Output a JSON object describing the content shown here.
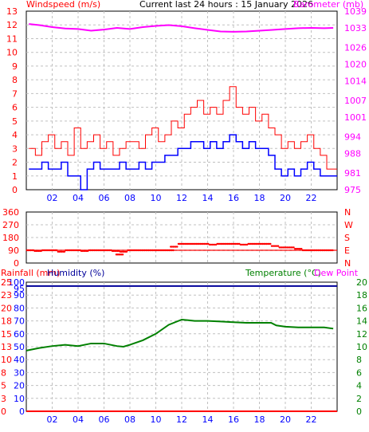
{
  "header": {
    "left_title": "Windspeed (m/s)",
    "center_title": "Current last 24 hours : 15 January 2026",
    "right_title": "Barometer (mb)"
  },
  "colors": {
    "gust": "#ff0000",
    "avg_wind": "#0000ff",
    "barometer": "#ff00ff",
    "direction": "#ff0000",
    "temperature": "#008000",
    "humidity": "#000099",
    "rainfall": "#ff0000",
    "grid": "#c0c0c0",
    "frame": "#000000"
  },
  "chart_data": [
    {
      "type": "line",
      "title": "Current last 24 hours : 15 January 2026",
      "x_ticks": [
        "02",
        "04",
        "06",
        "08",
        "10",
        "12",
        "14",
        "16",
        "18",
        "20",
        "22"
      ],
      "y_left": {
        "label": "Windspeed (m/s)",
        "ticks": [
          "0",
          "1",
          "2",
          "3",
          "4",
          "5",
          "6",
          "7",
          "8",
          "9",
          "10",
          "11",
          "12",
          "13"
        ],
        "ylim": [
          0,
          13
        ]
      },
      "y_right": {
        "label": "Barometer (mb)",
        "ticks": [
          "975",
          "981",
          "988",
          "994",
          "1001",
          "1007",
          "1014",
          "1020",
          "1026",
          "1033",
          "1039"
        ],
        "ylim": [
          975,
          1039
        ]
      },
      "grid": true,
      "series": [
        {
          "axis": "right",
          "color": "#ff00ff",
          "x": [
            0.2,
            1,
            2,
            3,
            4,
            5,
            6,
            7,
            8,
            9,
            10,
            11,
            12,
            13,
            14,
            15,
            16,
            17,
            18,
            19,
            20,
            21,
            22,
            23,
            23.7
          ],
          "values": [
            1034.4,
            1034.0,
            1033.3,
            1032.8,
            1032.6,
            1032.0,
            1032.4,
            1033.0,
            1032.6,
            1033.3,
            1033.7,
            1034.0,
            1033.6,
            1032.9,
            1032.3,
            1031.7,
            1031.6,
            1031.7,
            1032.0,
            1032.3,
            1032.6,
            1032.9,
            1033.0,
            1032.9,
            1033.0
          ]
        },
        {
          "axis": "left",
          "color": "#ff0000",
          "x": [
            0.2,
            0.7,
            1.2,
            1.7,
            2.2,
            2.7,
            3.2,
            3.7,
            4.2,
            4.7,
            5.2,
            5.7,
            6.2,
            6.7,
            7.2,
            7.7,
            8.2,
            8.7,
            9.2,
            9.7,
            10.2,
            10.7,
            11.2,
            11.7,
            12.2,
            12.7,
            13.2,
            13.7,
            14.2,
            14.7,
            15.2,
            15.7,
            16.2,
            16.7,
            17.2,
            17.7,
            18.2,
            18.7,
            19.2,
            19.7,
            20.2,
            20.7,
            21.2,
            21.7,
            22.2,
            22.7,
            23.2,
            23.7
          ],
          "values": [
            3,
            2.5,
            3.5,
            4,
            3,
            3.5,
            2.5,
            4.5,
            3,
            3.5,
            4,
            3,
            3.5,
            2.5,
            3,
            3.5,
            3.5,
            3,
            4,
            4.5,
            3.5,
            4,
            5,
            4.5,
            5.5,
            6,
            6.5,
            5.5,
            6,
            5.5,
            6.5,
            7.5,
            6,
            5.5,
            6,
            5,
            5.5,
            4.5,
            4,
            3,
            3.5,
            3,
            3.5,
            4,
            3,
            2.5,
            1.5,
            1.5
          ]
        },
        {
          "axis": "left",
          "color": "#0000ff",
          "x": [
            0.2,
            0.7,
            1.2,
            1.7,
            2.2,
            2.7,
            3.2,
            3.7,
            4.2,
            4.7,
            5.2,
            5.7,
            6.2,
            6.7,
            7.2,
            7.7,
            8.2,
            8.7,
            9.2,
            9.7,
            10.2,
            10.7,
            11.2,
            11.7,
            12.2,
            12.7,
            13.2,
            13.7,
            14.2,
            14.7,
            15.2,
            15.7,
            16.2,
            16.7,
            17.2,
            17.7,
            18.2,
            18.7,
            19.2,
            19.7,
            20.2,
            20.7,
            21.2,
            21.7,
            22.2,
            22.7,
            23.2,
            23.7
          ],
          "values": [
            1.5,
            1.5,
            2,
            1.5,
            1.5,
            2,
            1,
            1,
            0,
            1.5,
            2,
            1.5,
            1.5,
            1.5,
            2,
            1.5,
            1.5,
            2,
            1.5,
            2,
            2,
            2.5,
            2.5,
            3,
            3,
            3.5,
            3.5,
            3,
            3.5,
            3,
            3.5,
            4,
            3.5,
            3,
            3.5,
            3,
            3,
            2.5,
            1.5,
            1,
            1.5,
            1,
            1.5,
            2,
            1.5,
            1,
            1,
            1
          ]
        }
      ]
    },
    {
      "type": "scatter",
      "y_left": {
        "ticks": [
          "0",
          "90",
          "180",
          "270",
          "360"
        ],
        "ylim": [
          0,
          360
        ]
      },
      "y_right": {
        "ticks": [
          "N",
          "E",
          "S",
          "W",
          "N"
        ]
      },
      "grid": true,
      "series": [
        {
          "color": "#ff0000",
          "x": [
            0.3,
            0.9,
            1.5,
            2.1,
            2.7,
            3.3,
            3.9,
            4.5,
            5.1,
            5.7,
            6.3,
            6.9,
            7.2,
            7.5,
            8.1,
            8.7,
            9.3,
            9.9,
            10.5,
            11.1,
            11.4,
            12.0,
            12.6,
            13.2,
            13.8,
            14.4,
            15.0,
            15.6,
            16.2,
            16.8,
            17.4,
            18.0,
            18.6,
            19.2,
            19.8,
            20.4,
            21.0,
            21.6,
            22.2,
            22.8,
            23.4
          ],
          "values": [
            90,
            85,
            90,
            90,
            80,
            90,
            90,
            85,
            90,
            90,
            90,
            85,
            60,
            80,
            90,
            90,
            90,
            90,
            90,
            90,
            115,
            135,
            135,
            135,
            135,
            130,
            135,
            135,
            135,
            130,
            135,
            135,
            135,
            120,
            110,
            110,
            100,
            90,
            90,
            90,
            90
          ]
        }
      ]
    },
    {
      "type": "line",
      "x_ticks": [
        "02",
        "04",
        "06",
        "08",
        "10",
        "12",
        "14",
        "16",
        "18",
        "20",
        "22"
      ],
      "y_left": {
        "label": "Humidity (%)",
        "ticks": [
          "0",
          "10",
          "20",
          "30",
          "40",
          "50",
          "60",
          "70",
          "80",
          "90",
          "95",
          "100"
        ],
        "ylim": [
          0,
          100
        ]
      },
      "y_left_outer": {
        "label": "Rainfall (mm)",
        "ticks": [
          "0",
          "3",
          "5",
          "8",
          "10",
          "13",
          "15",
          "18",
          "20",
          "23",
          "25"
        ]
      },
      "y_right": {
        "label": "Temperature (°C)",
        "ticks": [
          "0",
          "2",
          "4",
          "6",
          "8",
          "10",
          "12",
          "14",
          "16",
          "18",
          "20"
        ],
        "ylim": [
          0,
          20
        ]
      },
      "right_title2": "Dew Point",
      "grid": true,
      "series": [
        {
          "axis": "right",
          "color": "#008000",
          "x": [
            0,
            1,
            2,
            3,
            4,
            5,
            6,
            7,
            7.5,
            8,
            9,
            10,
            11,
            12,
            12.5,
            13,
            14,
            15,
            16,
            17,
            18,
            18.9,
            19.3,
            20,
            21,
            22,
            23,
            23.7
          ],
          "values": [
            9.4,
            9.8,
            10.1,
            10.3,
            10.1,
            10.5,
            10.5,
            10.1,
            10.0,
            10.3,
            11.0,
            12.0,
            13.4,
            14.2,
            14.1,
            14.0,
            14.0,
            13.9,
            13.8,
            13.7,
            13.7,
            13.7,
            13.3,
            13.1,
            13.0,
            13.0,
            13.0,
            12.8
          ]
        },
        {
          "axis": "left",
          "color": "#000099",
          "x": [
            0,
            24
          ],
          "values": [
            97,
            97
          ]
        },
        {
          "axis": "left",
          "color": "#ff0000",
          "x": [
            0,
            24
          ],
          "values": [
            0,
            0
          ]
        }
      ]
    }
  ]
}
